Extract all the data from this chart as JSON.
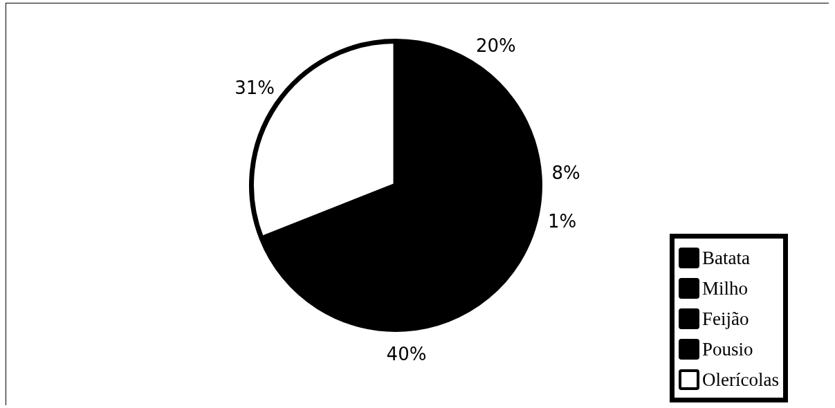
{
  "chart_data": {
    "type": "pie",
    "categories": [
      "Batata",
      "Milho",
      "Feijão",
      "Pousio",
      "Olerícolas"
    ],
    "values": [
      20,
      8,
      1,
      40,
      31
    ],
    "value_labels": [
      "20%",
      "8%",
      "1%",
      "40%",
      "31%"
    ],
    "colors": [
      "#000000",
      "#000000",
      "#000000",
      "#000000",
      "#ffffff"
    ],
    "legend": "bottom right"
  }
}
